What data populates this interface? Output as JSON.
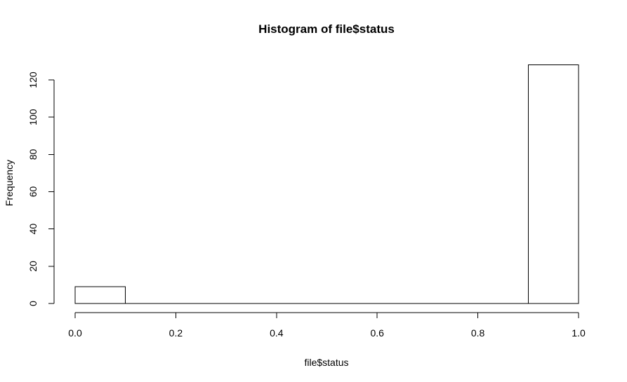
{
  "chart_data": {
    "type": "bar",
    "title": "Histogram of file$status",
    "xlabel": "file$status",
    "ylabel": "Frequency",
    "xlim": [
      0,
      1
    ],
    "ylim": [
      0,
      128
    ],
    "x_ticks": [
      "0.0",
      "0.2",
      "0.4",
      "0.6",
      "0.8",
      "1.0"
    ],
    "y_ticks": [
      "0",
      "20",
      "40",
      "60",
      "80",
      "100",
      "120"
    ],
    "bins": [
      {
        "start": 0.0,
        "end": 0.1,
        "count": 9
      },
      {
        "start": 0.1,
        "end": 0.2,
        "count": 0
      },
      {
        "start": 0.2,
        "end": 0.3,
        "count": 0
      },
      {
        "start": 0.3,
        "end": 0.4,
        "count": 0
      },
      {
        "start": 0.4,
        "end": 0.5,
        "count": 0
      },
      {
        "start": 0.5,
        "end": 0.6,
        "count": 0
      },
      {
        "start": 0.6,
        "end": 0.7,
        "count": 0
      },
      {
        "start": 0.7,
        "end": 0.8,
        "count": 0
      },
      {
        "start": 0.8,
        "end": 0.9,
        "count": 0
      },
      {
        "start": 0.9,
        "end": 1.0,
        "count": 128
      }
    ],
    "grid": false,
    "colors": {
      "bar_fill": "#ffffff",
      "bar_stroke": "#000000",
      "axis": "#000000",
      "background": "#ffffff"
    }
  }
}
